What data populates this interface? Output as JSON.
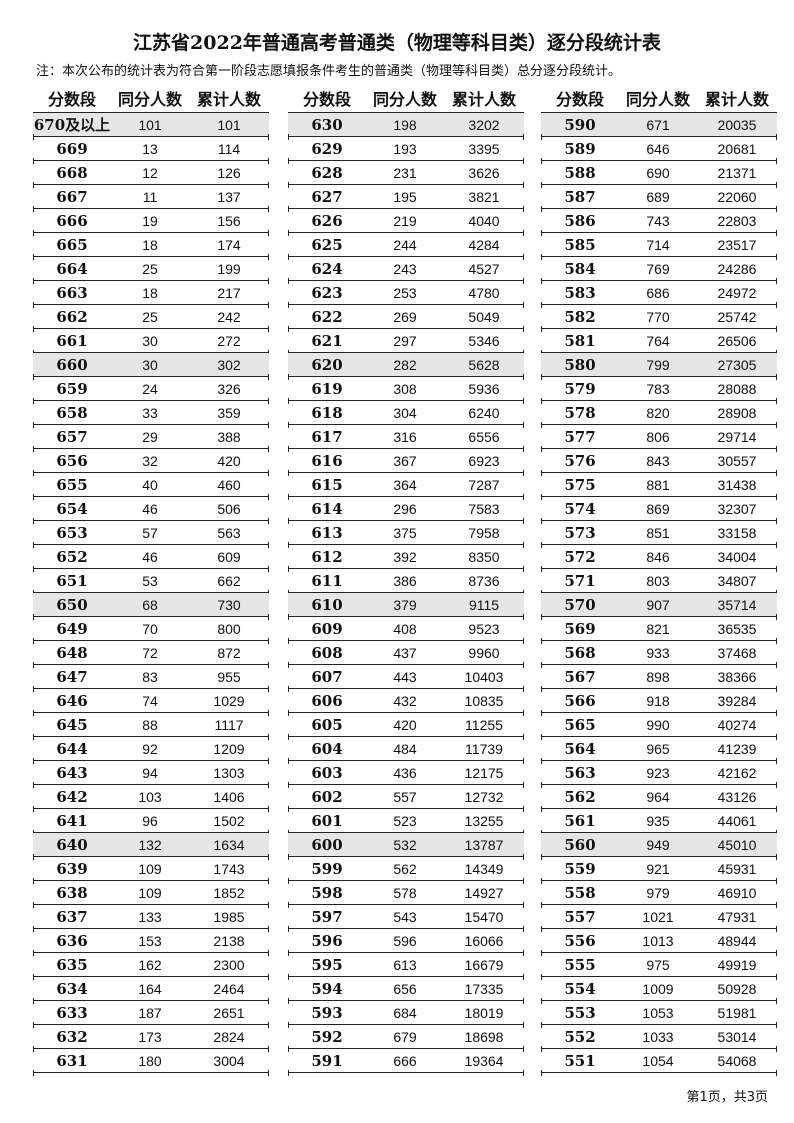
{
  "title": "江苏省2022年普通高考普通类（物理等科目类）逐分段统计表",
  "note": "注：本次公布的统计表为符合第一阶段志愿填报条件考生的普通类（物理等科目类）总分逐分段统计。",
  "headers": [
    "分数段",
    "同分人数",
    "累计人数"
  ],
  "shade_color": "#e6e6e6",
  "tables": [
    [
      [
        "670及以上",
        "101",
        "101"
      ],
      [
        "669",
        "13",
        "114"
      ],
      [
        "668",
        "12",
        "126"
      ],
      [
        "667",
        "11",
        "137"
      ],
      [
        "666",
        "19",
        "156"
      ],
      [
        "665",
        "18",
        "174"
      ],
      [
        "664",
        "25",
        "199"
      ],
      [
        "663",
        "18",
        "217"
      ],
      [
        "662",
        "25",
        "242"
      ],
      [
        "661",
        "30",
        "272"
      ],
      [
        "660",
        "30",
        "302"
      ],
      [
        "659",
        "24",
        "326"
      ],
      [
        "658",
        "33",
        "359"
      ],
      [
        "657",
        "29",
        "388"
      ],
      [
        "656",
        "32",
        "420"
      ],
      [
        "655",
        "40",
        "460"
      ],
      [
        "654",
        "46",
        "506"
      ],
      [
        "653",
        "57",
        "563"
      ],
      [
        "652",
        "46",
        "609"
      ],
      [
        "651",
        "53",
        "662"
      ],
      [
        "650",
        "68",
        "730"
      ],
      [
        "649",
        "70",
        "800"
      ],
      [
        "648",
        "72",
        "872"
      ],
      [
        "647",
        "83",
        "955"
      ],
      [
        "646",
        "74",
        "1029"
      ],
      [
        "645",
        "88",
        "1117"
      ],
      [
        "644",
        "92",
        "1209"
      ],
      [
        "643",
        "94",
        "1303"
      ],
      [
        "642",
        "103",
        "1406"
      ],
      [
        "641",
        "96",
        "1502"
      ],
      [
        "640",
        "132",
        "1634"
      ],
      [
        "639",
        "109",
        "1743"
      ],
      [
        "638",
        "109",
        "1852"
      ],
      [
        "637",
        "133",
        "1985"
      ],
      [
        "636",
        "153",
        "2138"
      ],
      [
        "635",
        "162",
        "2300"
      ],
      [
        "634",
        "164",
        "2464"
      ],
      [
        "633",
        "187",
        "2651"
      ],
      [
        "632",
        "173",
        "2824"
      ],
      [
        "631",
        "180",
        "3004"
      ]
    ],
    [
      [
        "630",
        "198",
        "3202"
      ],
      [
        "629",
        "193",
        "3395"
      ],
      [
        "628",
        "231",
        "3626"
      ],
      [
        "627",
        "195",
        "3821"
      ],
      [
        "626",
        "219",
        "4040"
      ],
      [
        "625",
        "244",
        "4284"
      ],
      [
        "624",
        "243",
        "4527"
      ],
      [
        "623",
        "253",
        "4780"
      ],
      [
        "622",
        "269",
        "5049"
      ],
      [
        "621",
        "297",
        "5346"
      ],
      [
        "620",
        "282",
        "5628"
      ],
      [
        "619",
        "308",
        "5936"
      ],
      [
        "618",
        "304",
        "6240"
      ],
      [
        "617",
        "316",
        "6556"
      ],
      [
        "616",
        "367",
        "6923"
      ],
      [
        "615",
        "364",
        "7287"
      ],
      [
        "614",
        "296",
        "7583"
      ],
      [
        "613",
        "375",
        "7958"
      ],
      [
        "612",
        "392",
        "8350"
      ],
      [
        "611",
        "386",
        "8736"
      ],
      [
        "610",
        "379",
        "9115"
      ],
      [
        "609",
        "408",
        "9523"
      ],
      [
        "608",
        "437",
        "9960"
      ],
      [
        "607",
        "443",
        "10403"
      ],
      [
        "606",
        "432",
        "10835"
      ],
      [
        "605",
        "420",
        "11255"
      ],
      [
        "604",
        "484",
        "11739"
      ],
      [
        "603",
        "436",
        "12175"
      ],
      [
        "602",
        "557",
        "12732"
      ],
      [
        "601",
        "523",
        "13255"
      ],
      [
        "600",
        "532",
        "13787"
      ],
      [
        "599",
        "562",
        "14349"
      ],
      [
        "598",
        "578",
        "14927"
      ],
      [
        "597",
        "543",
        "15470"
      ],
      [
        "596",
        "596",
        "16066"
      ],
      [
        "595",
        "613",
        "16679"
      ],
      [
        "594",
        "656",
        "17335"
      ],
      [
        "593",
        "684",
        "18019"
      ],
      [
        "592",
        "679",
        "18698"
      ],
      [
        "591",
        "666",
        "19364"
      ]
    ],
    [
      [
        "590",
        "671",
        "20035"
      ],
      [
        "589",
        "646",
        "20681"
      ],
      [
        "588",
        "690",
        "21371"
      ],
      [
        "587",
        "689",
        "22060"
      ],
      [
        "586",
        "743",
        "22803"
      ],
      [
        "585",
        "714",
        "23517"
      ],
      [
        "584",
        "769",
        "24286"
      ],
      [
        "583",
        "686",
        "24972"
      ],
      [
        "582",
        "770",
        "25742"
      ],
      [
        "581",
        "764",
        "26506"
      ],
      [
        "580",
        "799",
        "27305"
      ],
      [
        "579",
        "783",
        "28088"
      ],
      [
        "578",
        "820",
        "28908"
      ],
      [
        "577",
        "806",
        "29714"
      ],
      [
        "576",
        "843",
        "30557"
      ],
      [
        "575",
        "881",
        "31438"
      ],
      [
        "574",
        "869",
        "32307"
      ],
      [
        "573",
        "851",
        "33158"
      ],
      [
        "572",
        "846",
        "34004"
      ],
      [
        "571",
        "803",
        "34807"
      ],
      [
        "570",
        "907",
        "35714"
      ],
      [
        "569",
        "821",
        "36535"
      ],
      [
        "568",
        "933",
        "37468"
      ],
      [
        "567",
        "898",
        "38366"
      ],
      [
        "566",
        "918",
        "39284"
      ],
      [
        "565",
        "990",
        "40274"
      ],
      [
        "564",
        "965",
        "41239"
      ],
      [
        "563",
        "923",
        "42162"
      ],
      [
        "562",
        "964",
        "43126"
      ],
      [
        "561",
        "935",
        "44061"
      ],
      [
        "560",
        "949",
        "45010"
      ],
      [
        "559",
        "921",
        "45931"
      ],
      [
        "558",
        "979",
        "46910"
      ],
      [
        "557",
        "1021",
        "47931"
      ],
      [
        "556",
        "1013",
        "48944"
      ],
      [
        "555",
        "975",
        "49919"
      ],
      [
        "554",
        "1009",
        "50928"
      ],
      [
        "553",
        "1053",
        "51981"
      ],
      [
        "552",
        "1033",
        "53014"
      ],
      [
        "551",
        "1054",
        "54068"
      ]
    ]
  ],
  "footer": "第1页，共3页"
}
